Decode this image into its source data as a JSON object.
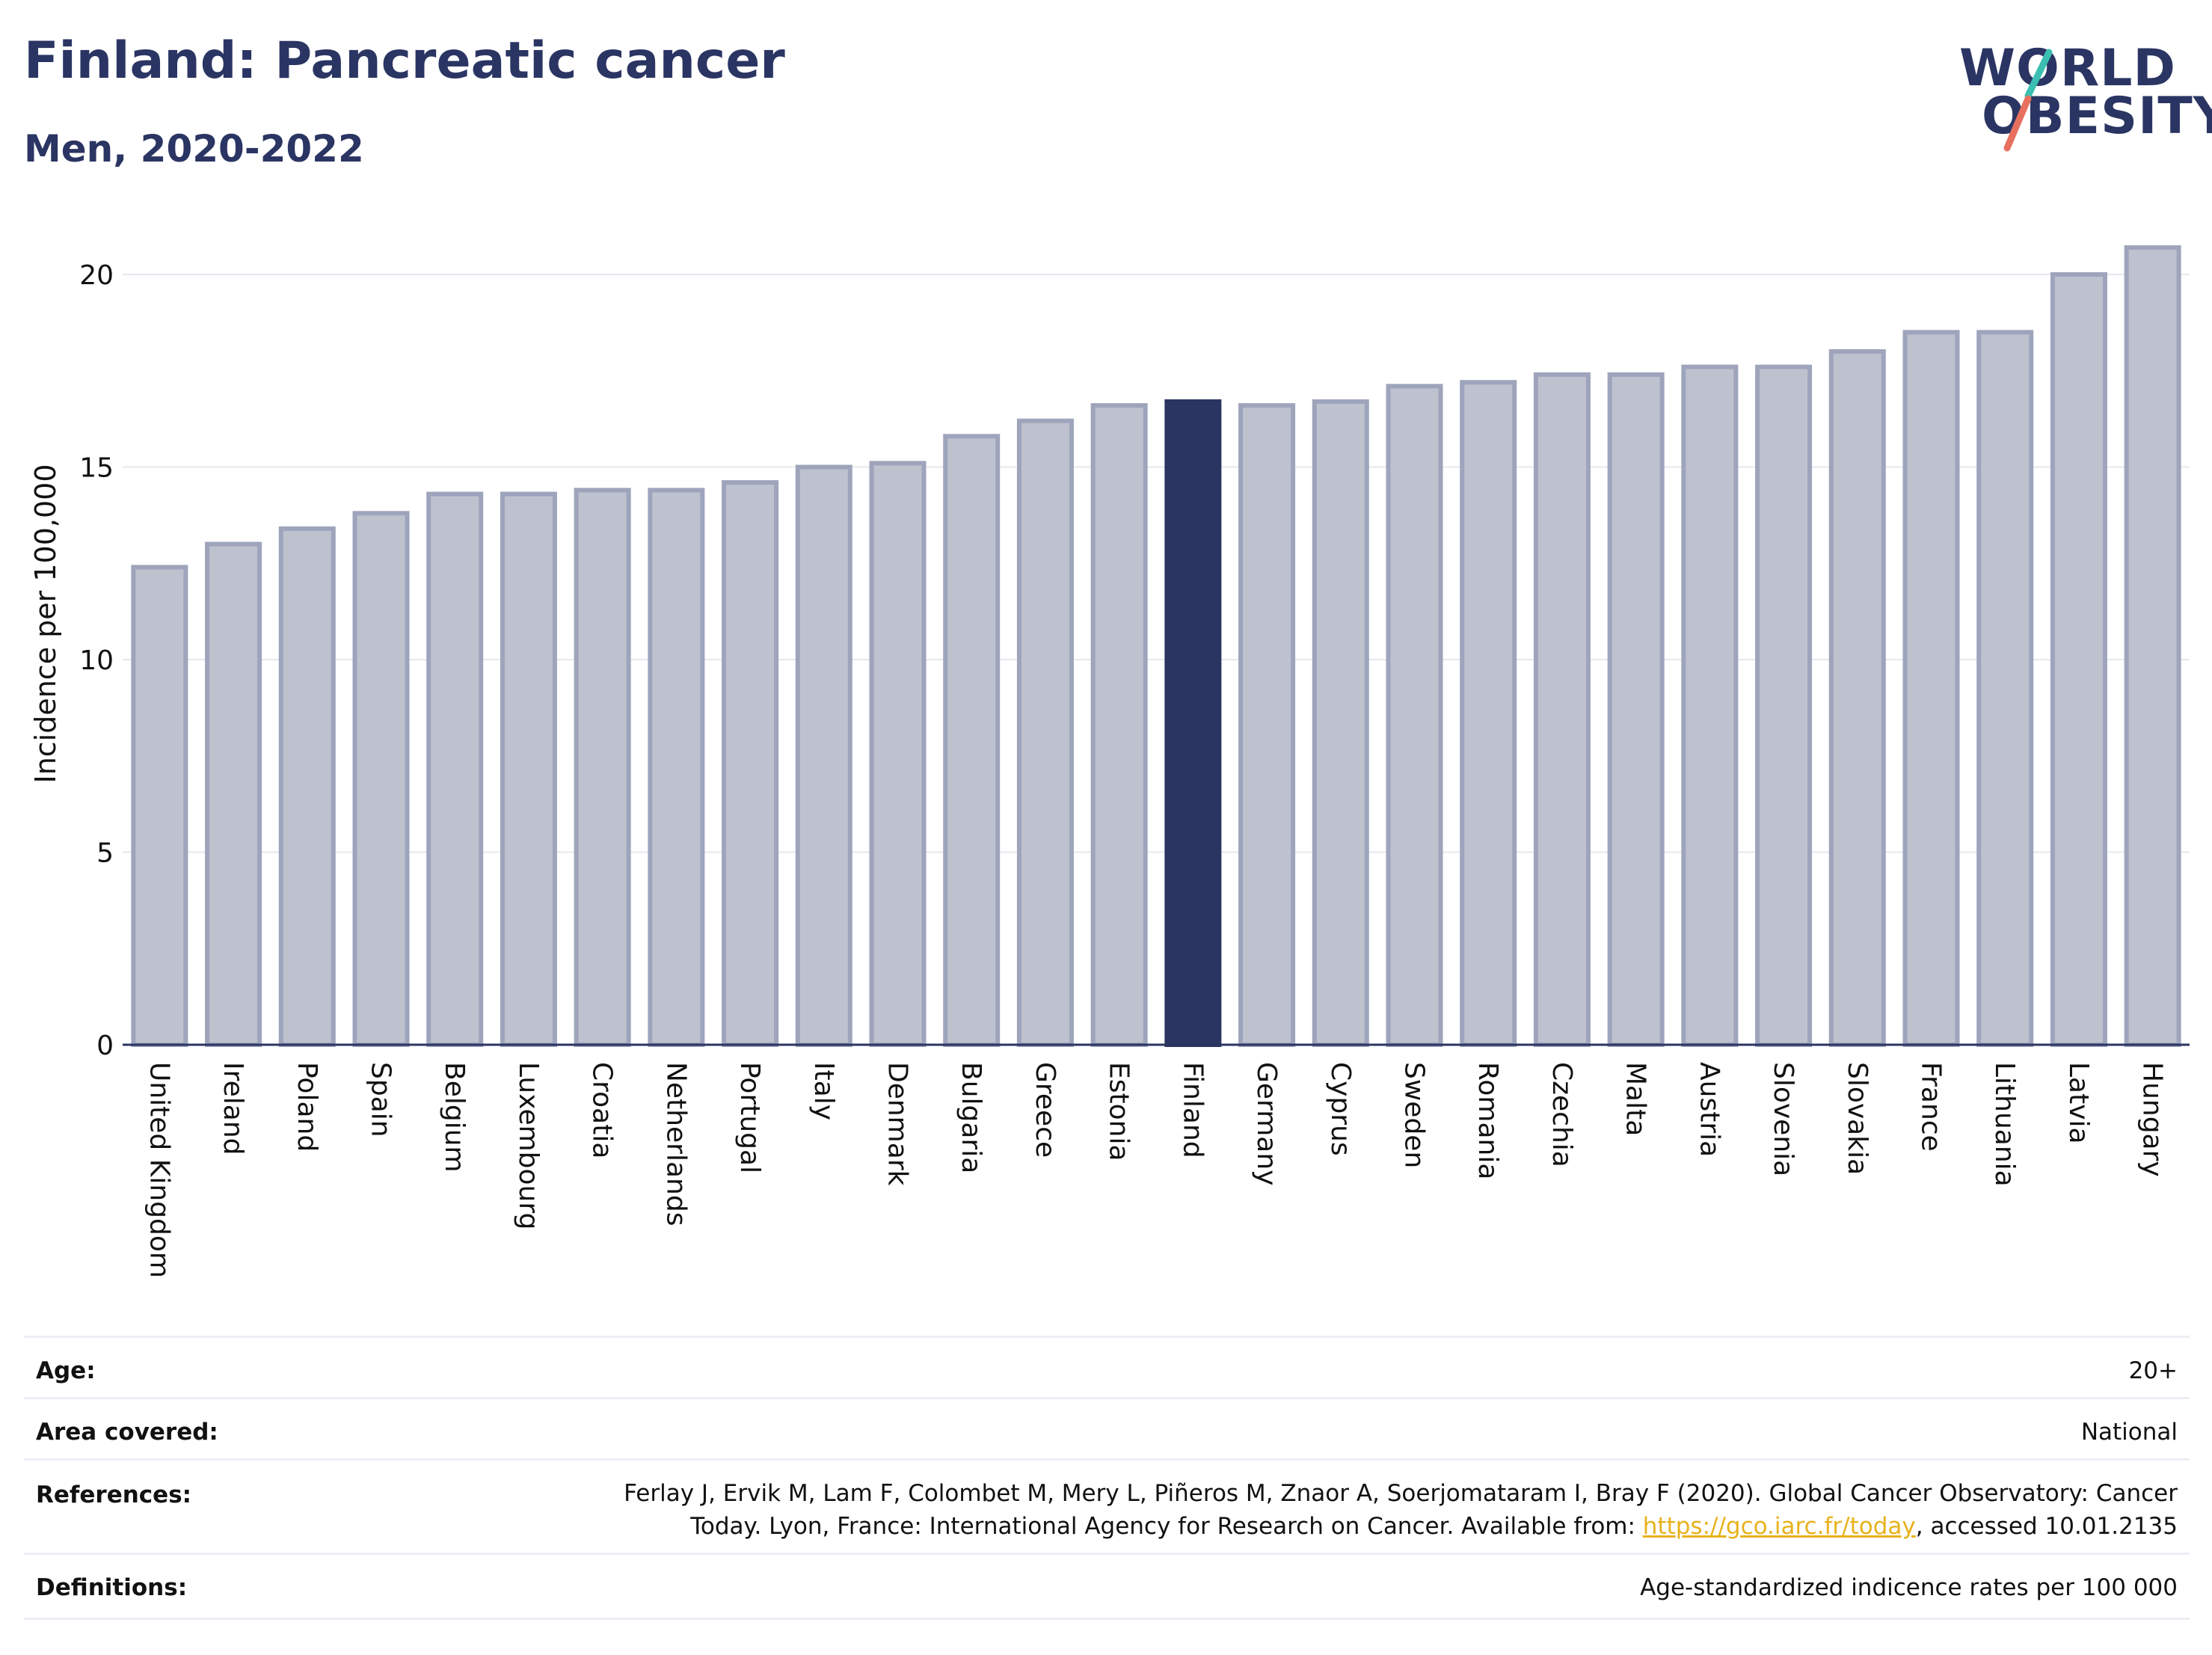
{
  "header": {
    "title": "Finland: Pancreatic cancer",
    "subtitle": "Men, 2020-2022"
  },
  "logo": {
    "line1": "WORLD",
    "line2": "OBESITY",
    "text_color": "#2b3563",
    "accent_teal": "#3bbfb2",
    "accent_coral": "#e8705f"
  },
  "colors": {
    "bar_fill": "#bec2cf",
    "bar_stroke": "#9ea4bb",
    "highlight_fill": "#2a3561",
    "axis": "#2a3560",
    "grid": "#e6e8ee"
  },
  "chart_data": {
    "type": "bar",
    "title": "Finland: Pancreatic cancer",
    "subtitle": "Men, 2020-2022",
    "xlabel": "",
    "ylabel": "Incidence per 100,000",
    "ylim": [
      0,
      21.5
    ],
    "yticks": [
      0,
      5,
      10,
      15,
      20
    ],
    "grid": true,
    "highlight": "Finland",
    "categories": [
      "United Kingdom",
      "Ireland",
      "Poland",
      "Spain",
      "Belgium",
      "Luxembourg",
      "Croatia",
      "Netherlands",
      "Portugal",
      "Italy",
      "Denmark",
      "Bulgaria",
      "Greece",
      "Estonia",
      "Finland",
      "Germany",
      "Cyprus",
      "Sweden",
      "Romania",
      "Czechia",
      "Malta",
      "Austria",
      "Slovenia",
      "Slovakia",
      "France",
      "Lithuania",
      "Latvia",
      "Hungary"
    ],
    "values": [
      12.4,
      13.0,
      13.4,
      13.8,
      14.3,
      14.3,
      14.4,
      14.4,
      14.6,
      15.0,
      15.1,
      15.8,
      16.2,
      16.6,
      16.7,
      16.6,
      16.7,
      17.1,
      17.2,
      17.4,
      17.4,
      17.6,
      17.6,
      18.0,
      18.5,
      18.5,
      20.0,
      20.7
    ]
  },
  "meta": {
    "age": {
      "label": "Age:",
      "value": "20+"
    },
    "area": {
      "label": "Area covered:",
      "value": "National"
    },
    "references": {
      "label": "References:",
      "line1": "Ferlay J, Ervik M, Lam F, Colombet M, Mery L, Piñeros M, Znaor A, Soerjomataram I, Bray F (2020). Global Cancer Observatory: Cancer",
      "line2_pre": "Today. Lyon, France: International Agency for Research on Cancer. Available from: ",
      "link": "https://gco.iarc.fr/today",
      "line2_post": ", accessed 10.01.2135"
    },
    "definitions": {
      "label": "Definitions:",
      "value": "Age-standardized indicence rates per 100 000"
    }
  }
}
